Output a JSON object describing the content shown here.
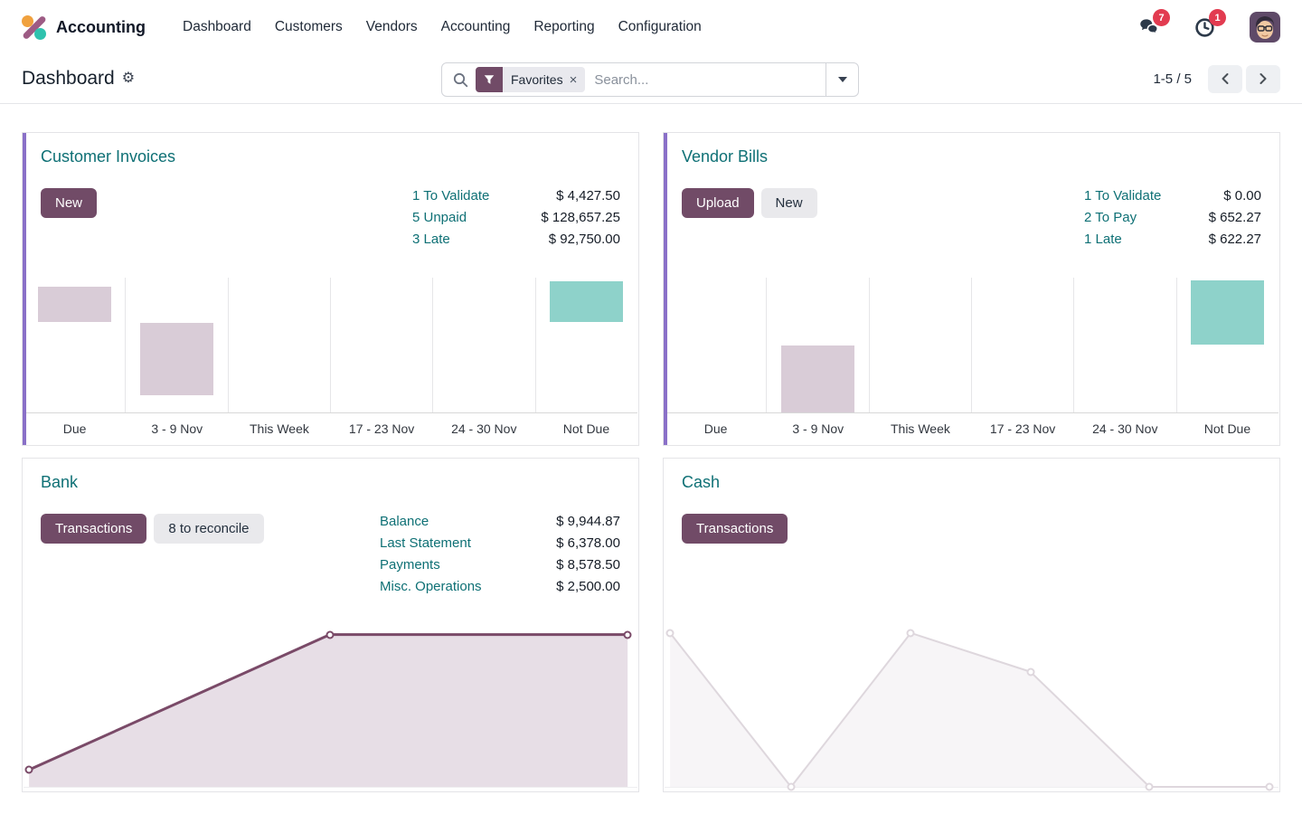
{
  "nav": {
    "app_name": "Accounting",
    "items": [
      "Dashboard",
      "Customers",
      "Vendors",
      "Accounting",
      "Reporting",
      "Configuration"
    ],
    "messages_badge": "7",
    "activities_badge": "1"
  },
  "control_panel": {
    "title": "Dashboard",
    "search": {
      "facet": "Favorites",
      "remove_facet": "×",
      "placeholder": "Search..."
    },
    "pager": {
      "value": "1-5 / 5"
    }
  },
  "theme": {
    "primary": "#714B67",
    "link_teal": "#0e7075",
    "card_stripe": "#8a70c8",
    "badge_red": "#e23b50",
    "bar_mauve": "#d9ccd7",
    "bar_teal": "#8ed2ca"
  },
  "icons": [
    "accounting-logo",
    "messages-icon",
    "activities-clock-icon",
    "avatar",
    "search-icon",
    "filter-funnel-icon",
    "close-icon",
    "caret-down-icon",
    "gear-icon",
    "chevron-left-icon",
    "chevron-right-icon"
  ],
  "cards": {
    "customer_invoices": {
      "title": "Customer Invoices",
      "new_button": "New",
      "stats": [
        {
          "label": "1 To Validate",
          "value": "$ 4,427.50"
        },
        {
          "label": "5 Unpaid",
          "value": "$ 128,657.25"
        },
        {
          "label": "3 Late",
          "value": "$ 92,750.00"
        }
      ],
      "chart": {
        "type": "bar",
        "categories": [
          "Due",
          "3 - 9 Nov",
          "This Week",
          "17 - 23 Nov",
          "24 - 30 Nov",
          "Not Due"
        ],
        "bars": [
          {
            "cat": 0,
            "start": 7,
            "end": 33,
            "color": "#d9ccd7"
          },
          {
            "cat": 1,
            "start": 33.5,
            "end": 87,
            "color": "#d9ccd7"
          },
          {
            "cat": 5,
            "start": 2.5,
            "end": 33,
            "color": "#8ed2ca"
          }
        ]
      }
    },
    "vendor_bills": {
      "title": "Vendor Bills",
      "upload_button": "Upload",
      "new_button": "New",
      "stats": [
        {
          "label": "1 To Validate",
          "value": "$ 0.00"
        },
        {
          "label": "2 To Pay",
          "value": "$ 652.27"
        },
        {
          "label": "1 Late",
          "value": "$ 622.27"
        }
      ],
      "chart": {
        "type": "bar",
        "categories": [
          "Due",
          "3 - 9 Nov",
          "This Week",
          "17 - 23 Nov",
          "24 - 30 Nov",
          "Not Due"
        ],
        "bars": [
          {
            "cat": 1,
            "start": 50,
            "end": 100,
            "color": "#d9ccd7"
          },
          {
            "cat": 5,
            "start": 2,
            "end": 49.5,
            "color": "#8ed2ca"
          }
        ]
      }
    },
    "bank": {
      "title": "Bank",
      "transactions_button": "Transactions",
      "reconcile_button": "8 to reconcile",
      "stats": [
        {
          "label": "Balance",
          "value": "$ 9,944.87"
        },
        {
          "label": "Last Statement",
          "value": "$ 6,378.00"
        },
        {
          "label": "Payments",
          "value": "$ 8,578.50"
        },
        {
          "label": "Misc. Operations",
          "value": "$ 2,500.00"
        }
      ],
      "chart": {
        "type": "line",
        "points": [
          [
            0.9,
            89.6
          ],
          [
            49.9,
            7
          ],
          [
            98.4,
            7
          ]
        ],
        "stroke": "#7a4a68",
        "fill": "#e7dee6",
        "stroke_width": 3
      }
    },
    "cash": {
      "title": "Cash",
      "transactions_button": "Transactions",
      "stats": [],
      "chart": {
        "type": "line",
        "points": [
          [
            0.9,
            6
          ],
          [
            20.6,
            100
          ],
          [
            40.1,
            6
          ],
          [
            59.6,
            29.7
          ],
          [
            79,
            100
          ],
          [
            98.5,
            100
          ]
        ],
        "stroke": "#ded7dd",
        "fill": "#f7f5f7",
        "stroke_width": 2
      }
    }
  }
}
